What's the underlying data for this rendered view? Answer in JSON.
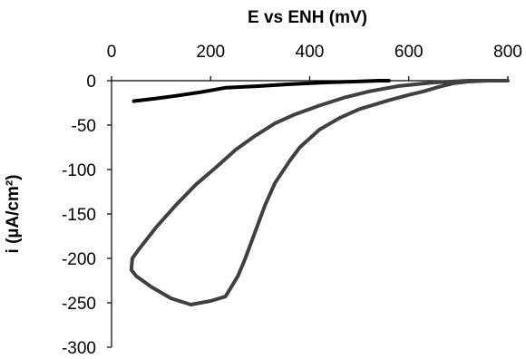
{
  "chart_data": {
    "type": "line",
    "title": "",
    "xlabel": "E vs ENH (mV)",
    "ylabel": "i (µA/cm²)",
    "xlim": [
      0,
      800
    ],
    "ylim": [
      -300,
      0
    ],
    "x_axis_position": "top",
    "x_ticks": [
      0,
      200,
      400,
      600,
      800
    ],
    "y_ticks": [
      0,
      -50,
      -100,
      -150,
      -200,
      -250,
      -300
    ],
    "x_tick_labels": [
      "0",
      "200",
      "400",
      "600",
      "800"
    ],
    "y_tick_labels": [
      "0",
      "-50",
      "-100",
      "-150",
      "-200",
      "-250",
      "-300"
    ],
    "grid": false,
    "legend": "none",
    "series": [
      {
        "color": "#000000",
        "points": [
          [
            45,
            -23
          ],
          [
            90,
            -20
          ],
          [
            130,
            -17
          ],
          [
            180,
            -13
          ],
          [
            230,
            -8
          ],
          [
            300,
            -6
          ],
          [
            360,
            -4
          ],
          [
            430,
            -2
          ],
          [
            490,
            -1
          ],
          [
            540,
            0
          ],
          [
            560,
            0
          ]
        ]
      },
      {
        "color": "#404040",
        "points": [
          [
            800,
            0
          ],
          [
            760,
            0
          ],
          [
            720,
            -1
          ],
          [
            690,
            -3
          ],
          [
            660,
            -7
          ],
          [
            630,
            -12
          ],
          [
            600,
            -16
          ],
          [
            560,
            -22
          ],
          [
            500,
            -32
          ],
          [
            460,
            -42
          ],
          [
            420,
            -55
          ],
          [
            380,
            -75
          ],
          [
            360,
            -90
          ],
          [
            330,
            -115
          ],
          [
            310,
            -140
          ],
          [
            290,
            -170
          ],
          [
            270,
            -200
          ],
          [
            255,
            -220
          ],
          [
            230,
            -243
          ],
          [
            200,
            -248
          ],
          [
            160,
            -252
          ],
          [
            120,
            -245
          ],
          [
            80,
            -232
          ],
          [
            50,
            -220
          ],
          [
            40,
            -213
          ],
          [
            42,
            -200
          ],
          [
            55,
            -190
          ],
          [
            90,
            -165
          ],
          [
            130,
            -140
          ],
          [
            170,
            -117
          ],
          [
            210,
            -98
          ],
          [
            250,
            -78
          ],
          [
            290,
            -62
          ],
          [
            330,
            -48
          ],
          [
            370,
            -38
          ],
          [
            420,
            -28
          ],
          [
            470,
            -19
          ],
          [
            520,
            -12
          ],
          [
            580,
            -6
          ],
          [
            650,
            -2
          ],
          [
            720,
            0
          ],
          [
            780,
            0
          ]
        ]
      }
    ]
  }
}
